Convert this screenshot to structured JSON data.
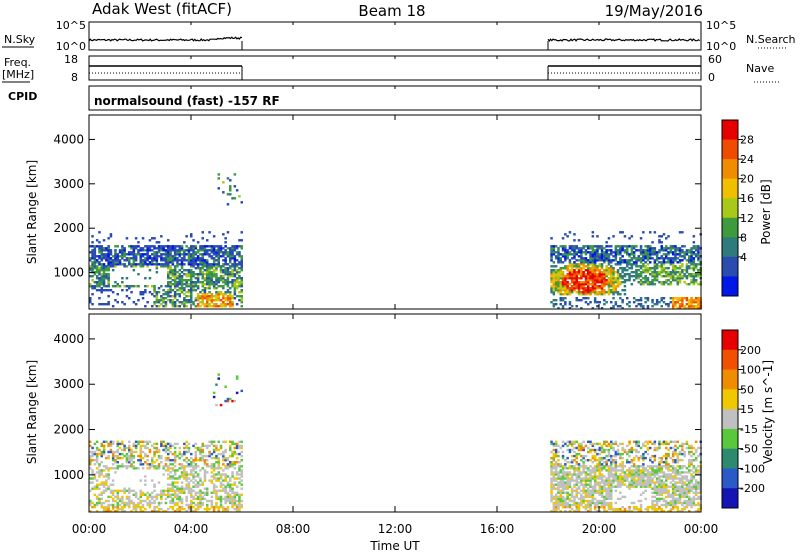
{
  "header": {
    "station": "Adak West (fitACF)",
    "beam": "Beam 18",
    "date": "19/May/2016"
  },
  "panels": {
    "nsky_label": "N.Sky",
    "nsky_ticks": [
      "10^5",
      "10^0"
    ],
    "nsearch_label": "N.Search",
    "nsearch_ticks": [
      "10^5",
      "10^0"
    ],
    "freq_label_1": "Freq.",
    "freq_label_2": "[MHz]",
    "freq_ticks": [
      "18",
      "8"
    ],
    "nave_label": "Nave",
    "nave_ticks": [
      "60",
      "0"
    ],
    "cpid_label": "CPID",
    "cpid_text": "normalsound (fast) -157 RF"
  },
  "chart_data": [
    {
      "type": "heatmap",
      "name": "power",
      "ylabel": "Slant Range [km]",
      "yticks": [
        "4000",
        "3000",
        "2000",
        "1000"
      ],
      "ylim": [
        180,
        4550
      ],
      "colorbar_label": "Power [dB]",
      "colorbar_ticks": [
        "28",
        "24",
        "20",
        "16",
        "12",
        "8",
        "4"
      ],
      "colors": [
        "#0018e6",
        "#2a4bb0",
        "#2f7a7a",
        "#3d9b3d",
        "#a8c81a",
        "#f0c000",
        "#f08c00",
        "#f04c00",
        "#e60000"
      ],
      "data_gaps_ut": [
        [
          6,
          18
        ]
      ]
    },
    {
      "type": "heatmap",
      "name": "velocity",
      "ylabel": "Slant Range [km]",
      "yticks": [
        "4000",
        "3000",
        "2000",
        "1000"
      ],
      "ylim": [
        180,
        4550
      ],
      "colorbar_label": "Velocity [m s^-1]",
      "colorbar_ticks": [
        "200",
        "100",
        "50",
        "15",
        "-15",
        "-50",
        "-100",
        "-200"
      ],
      "colors": [
        "#1414b4",
        "#2a5ac8",
        "#2e8a6e",
        "#5ac83c",
        "#c0c0c0",
        "#f0c800",
        "#f08c00",
        "#f05000",
        "#e60000"
      ],
      "data_gaps_ut": [
        [
          6,
          18
        ]
      ]
    }
  ],
  "xaxis": {
    "label": "Time UT",
    "ticks": [
      "00:00",
      "04:00",
      "08:00",
      "12:00",
      "16:00",
      "20:00",
      "00:00"
    ]
  }
}
